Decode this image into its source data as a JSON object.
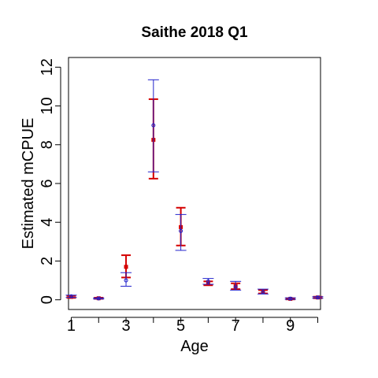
{
  "chart_data": {
    "type": "scatter",
    "title": "Saithe 2018 Q1",
    "xlabel": "Age",
    "ylabel": "Estimated mCPUE",
    "xlim": [
      0.9,
      10.1
    ],
    "ylim": [
      -0.5,
      12.5
    ],
    "x_ticks": [
      1,
      2,
      3,
      4,
      5,
      6,
      7,
      8,
      9,
      10
    ],
    "x_tick_labels": [
      "1",
      "",
      "3",
      "",
      "5",
      "",
      "7",
      "",
      "9",
      ""
    ],
    "y_ticks": [
      0,
      2,
      4,
      6,
      8,
      10,
      12
    ],
    "y_tick_labels": [
      "0",
      "2",
      "4",
      "6",
      "8",
      "10",
      "12"
    ],
    "grid": false,
    "series": [
      {
        "color": "#d40000",
        "marker": "filled-square",
        "points": [
          {
            "x": 1,
            "y": 0.15,
            "lo": 0.1,
            "hi": 0.2
          },
          {
            "x": 2,
            "y": 0.08,
            "lo": 0.05,
            "hi": 0.11
          },
          {
            "x": 3,
            "y": 1.7,
            "lo": 1.15,
            "hi": 2.3
          },
          {
            "x": 4,
            "y": 8.25,
            "lo": 6.25,
            "hi": 10.35
          },
          {
            "x": 5,
            "y": 3.75,
            "lo": 2.8,
            "hi": 4.75
          },
          {
            "x": 6,
            "y": 0.85,
            "lo": 0.75,
            "hi": 0.95
          },
          {
            "x": 7,
            "y": 0.7,
            "lo": 0.55,
            "hi": 0.85
          },
          {
            "x": 8,
            "y": 0.42,
            "lo": 0.33,
            "hi": 0.5
          },
          {
            "x": 9,
            "y": 0.05,
            "lo": 0.02,
            "hi": 0.08
          },
          {
            "x": 10,
            "y": 0.12,
            "lo": 0.08,
            "hi": 0.16
          }
        ]
      },
      {
        "color": "#2222cc",
        "marker": "open-circle",
        "points": [
          {
            "x": 1,
            "y": 0.18,
            "lo": 0.12,
            "hi": 0.24
          },
          {
            "x": 2,
            "y": 0.07,
            "lo": 0.04,
            "hi": 0.1
          },
          {
            "x": 3,
            "y": 1.0,
            "lo": 0.7,
            "hi": 1.4
          },
          {
            "x": 4,
            "y": 9.0,
            "lo": 6.6,
            "hi": 11.35
          },
          {
            "x": 5,
            "y": 3.55,
            "lo": 2.55,
            "hi": 4.4
          },
          {
            "x": 6,
            "y": 0.95,
            "lo": 0.8,
            "hi": 1.1
          },
          {
            "x": 7,
            "y": 0.65,
            "lo": 0.5,
            "hi": 0.95
          },
          {
            "x": 8,
            "y": 0.4,
            "lo": 0.3,
            "hi": 0.55
          },
          {
            "x": 9,
            "y": 0.06,
            "lo": 0.02,
            "hi": 0.1
          },
          {
            "x": 10,
            "y": 0.12,
            "lo": 0.08,
            "hi": 0.16
          }
        ]
      }
    ]
  }
}
